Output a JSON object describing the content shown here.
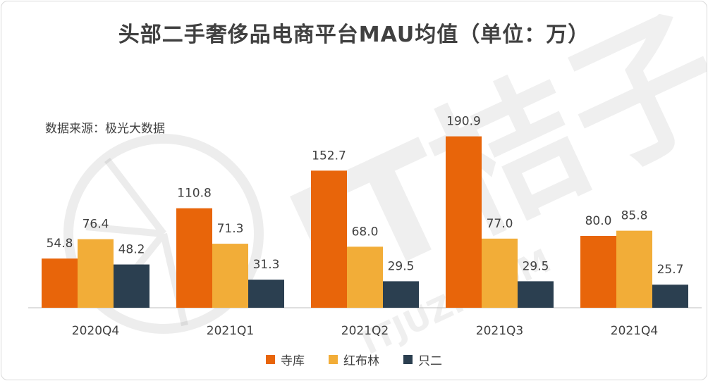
{
  "title": "头部二手奢侈品电商平台MAU均值（单位：万）",
  "source": "数据来源：极光大数据",
  "chart_data": {
    "type": "bar",
    "categories": [
      "2020Q4",
      "2021Q1",
      "2021Q2",
      "2021Q3",
      "2021Q4"
    ],
    "series": [
      {
        "name": "寺库",
        "color": "#e8650a",
        "values": [
          54.8,
          110.8,
          152.7,
          190.9,
          80.0
        ]
      },
      {
        "name": "红布林",
        "color": "#f2ad38",
        "values": [
          76.4,
          71.3,
          68.0,
          77.0,
          85.8
        ]
      },
      {
        "name": "只二",
        "color": "#2b3f50",
        "values": [
          48.2,
          31.3,
          29.5,
          29.5,
          25.7
        ]
      }
    ],
    "ylim": [
      0,
      200
    ],
    "grid": false,
    "legend": "bottom",
    "data_labels": true
  },
  "watermark": {
    "text": "IT桔子",
    "url": "ITJUZI.COM"
  }
}
